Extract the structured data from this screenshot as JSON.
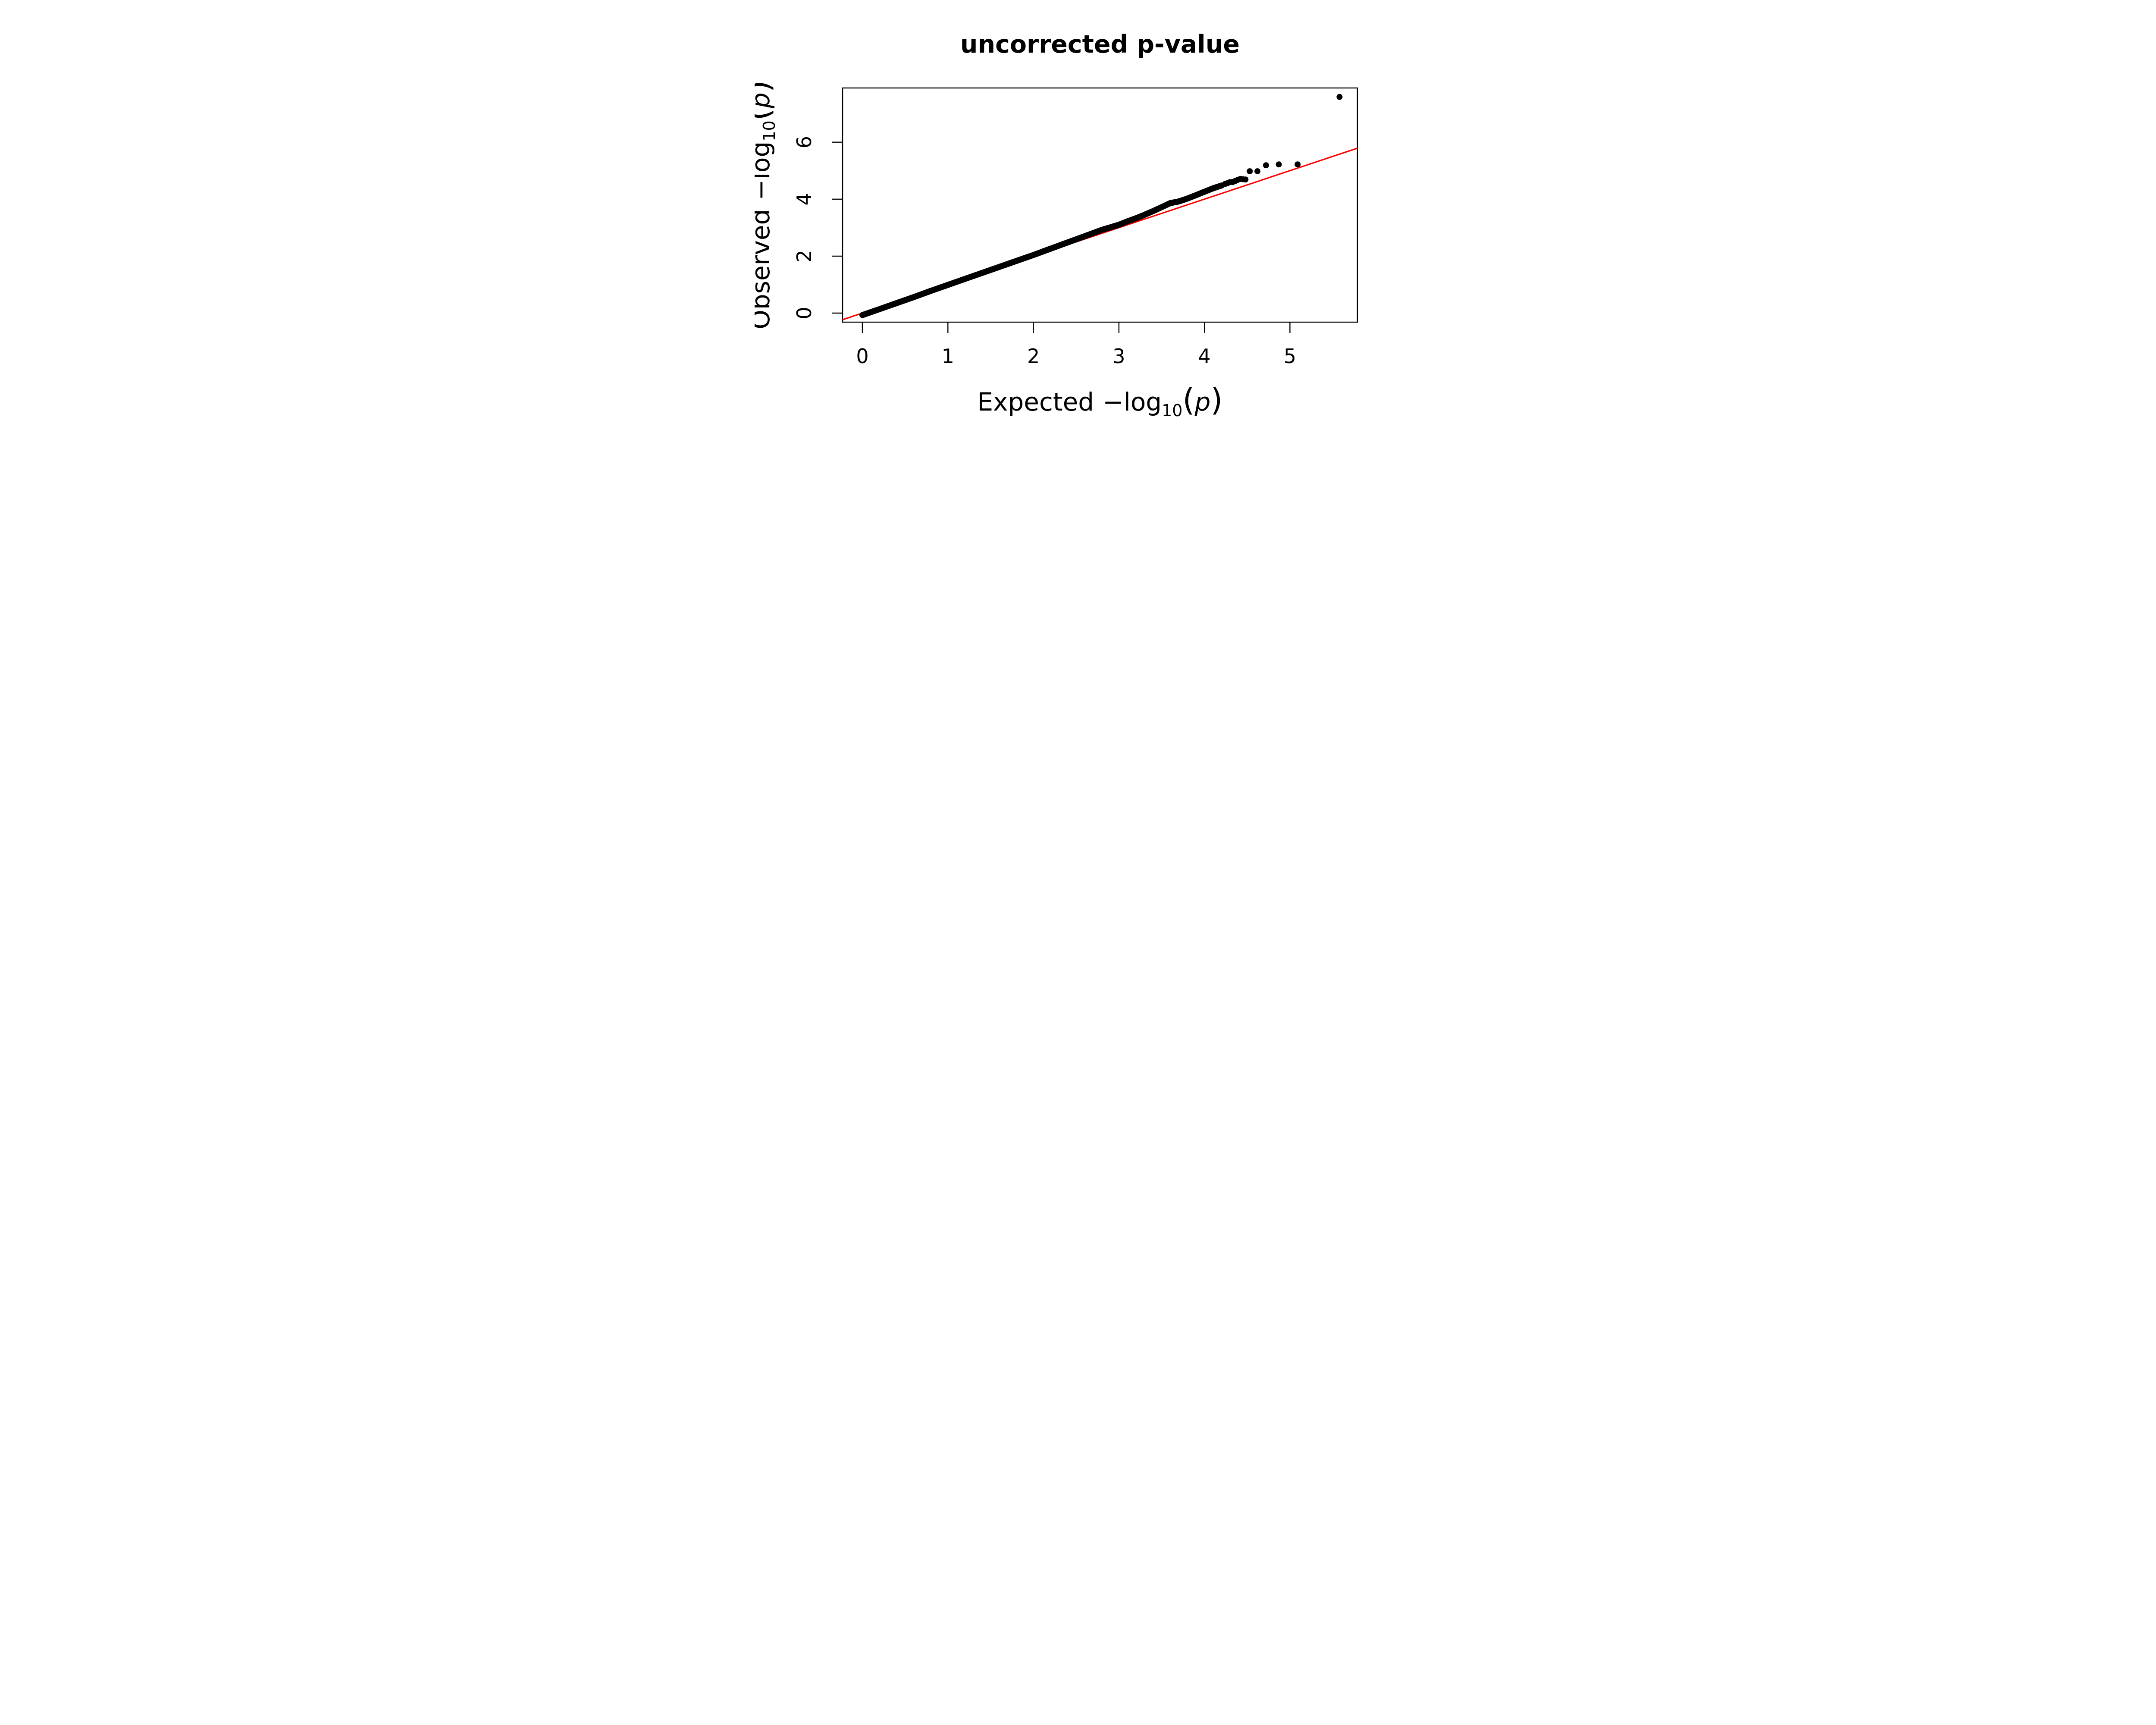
{
  "title": "uncorrected p-value",
  "colors": {
    "points": "#000000",
    "identity_line": "#FF0000",
    "axis": "#000000",
    "background": "#FFFFFF"
  },
  "x_axis": {
    "label": "Expected −log10(p)",
    "label_parts": {
      "prefix": "Expected",
      "func": "−log",
      "sub": "10",
      "open": "(",
      "var": "p",
      "close": ")"
    },
    "ticks": [
      "0",
      "1",
      "2",
      "3",
      "4",
      "5"
    ]
  },
  "y_axis": {
    "label": "Observed −log10(p)",
    "label_parts": {
      "prefix": "Observed",
      "func": "−log",
      "sub": "10",
      "open": "(",
      "var": "p",
      "close": ")"
    },
    "ticks": [
      "0",
      "2",
      "4",
      "6"
    ]
  },
  "chart_data": {
    "type": "scatter",
    "title": "uncorrected p-value",
    "xlabel": "Expected −log10(p)",
    "ylabel": "Observed −log10(p)",
    "xlim": [
      -0.23,
      5.8
    ],
    "ylim": [
      -0.32,
      7.9
    ],
    "x_ticks": [
      0,
      1,
      2,
      3,
      4,
      5
    ],
    "y_ticks": [
      0,
      2,
      4,
      6
    ],
    "grid": false,
    "legend": null,
    "point_color": "#000000",
    "point_diameter_data_units": 0.21,
    "identity_line": {
      "color": "#FF0000",
      "from": [
        -0.232,
        -0.232
      ],
      "to": [
        5.79,
        5.79
      ]
    },
    "dense_band": [
      [
        0.0,
        -0.07
      ],
      [
        0.2,
        0.14
      ],
      [
        0.4,
        0.35
      ],
      [
        0.6,
        0.56
      ],
      [
        0.8,
        0.78
      ],
      [
        1.0,
        0.99
      ],
      [
        1.2,
        1.2
      ],
      [
        1.4,
        1.41
      ],
      [
        1.6,
        1.62
      ],
      [
        1.8,
        1.83
      ],
      [
        2.0,
        2.04
      ],
      [
        2.2,
        2.26
      ],
      [
        2.4,
        2.48
      ],
      [
        2.6,
        2.7
      ],
      [
        2.8,
        2.92
      ],
      [
        3.0,
        3.1
      ],
      [
        3.1,
        3.22
      ],
      [
        3.2,
        3.33
      ],
      [
        3.3,
        3.45
      ],
      [
        3.4,
        3.58
      ],
      [
        3.5,
        3.72
      ],
      [
        3.6,
        3.86
      ],
      [
        3.7,
        3.92
      ],
      [
        3.8,
        4.02
      ],
      [
        3.9,
        4.14
      ],
      [
        4.0,
        4.26
      ],
      [
        4.1,
        4.38
      ],
      [
        4.2,
        4.48
      ]
    ],
    "tail_points": [
      [
        4.24,
        4.53
      ],
      [
        4.27,
        4.56
      ],
      [
        4.3,
        4.6
      ],
      [
        4.33,
        4.6
      ],
      [
        4.36,
        4.64
      ],
      [
        4.39,
        4.68
      ],
      [
        4.42,
        4.71
      ],
      [
        4.45,
        4.7
      ],
      [
        4.48,
        4.69
      ],
      [
        4.53,
        4.98
      ],
      [
        4.62,
        4.98
      ],
      [
        4.72,
        5.19
      ],
      [
        4.87,
        5.22
      ],
      [
        5.09,
        5.22
      ],
      [
        5.58,
        7.59
      ]
    ]
  }
}
